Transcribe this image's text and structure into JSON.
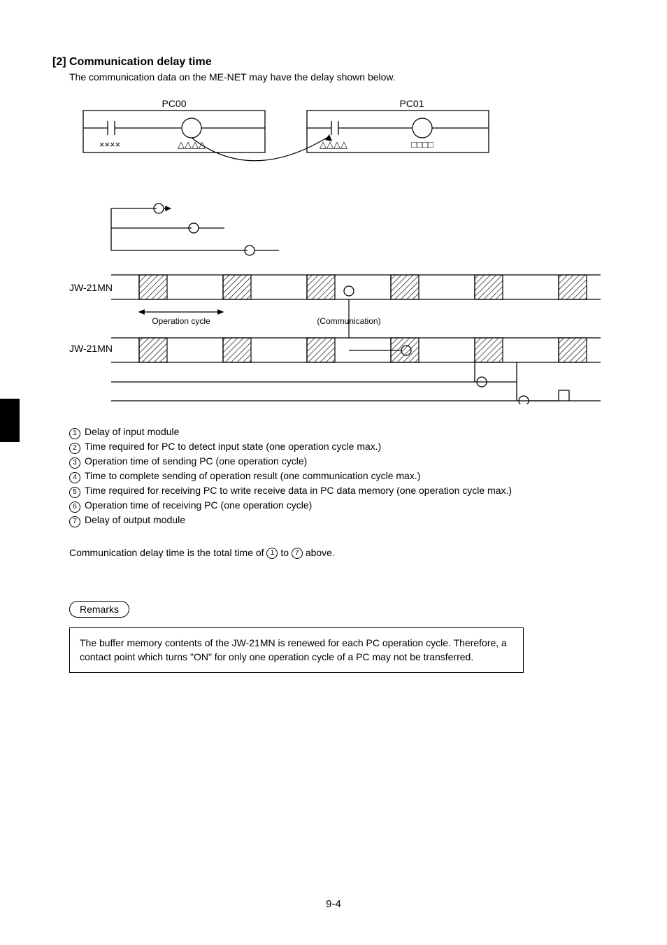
{
  "heading": "[2] Communication delay time",
  "intro": "The communication data on the ME-NET may have the delay shown below.",
  "diagram": {
    "pc_left_label": "PC00",
    "pc_right_label": "PC01",
    "sym_x": "××××",
    "sym_tri_1": "△△△△",
    "sym_tri_2": "△△△△",
    "sym_sq": "□□□□",
    "device_label_1": "JW-21MN",
    "device_label_2": "JW-21MN",
    "op_cycle_label": "Operation cycle",
    "comm_label": "(Communication)",
    "label_font_size": 14,
    "small_label_font_size": 12,
    "line_color": "#000000",
    "hatch_color": "#000000",
    "background_color": "#ffffff"
  },
  "legend": [
    {
      "n": "1",
      "text": "Delay of input module"
    },
    {
      "n": "2",
      "text": "Time required for PC to detect input state (one operation cycle max.)"
    },
    {
      "n": "3",
      "text": "Operation time of sending PC (one operation cycle)"
    },
    {
      "n": "4",
      "text": "Time to complete sending of operation result (one communication cycle max.)"
    },
    {
      "n": "5",
      "text": "Time required for receiving PC to write receive data in PC data memory (one operation cycle max.)"
    },
    {
      "n": "6",
      "text": "Operation time of receiving PC (one operation cycle)"
    },
    {
      "n": "7",
      "text": "Delay of output module"
    }
  ],
  "summary_parts": {
    "pre": "Communication delay time is the total time of ",
    "mid": " to ",
    "post": " above.",
    "first": "1",
    "last": "7"
  },
  "remarks_label": "Remarks",
  "remarks_text": "The buffer memory contents of the JW-21MN is renewed for each PC operation cycle. Therefore, a contact point which turns \"ON\" for only one operation cycle of a PC may not be transferred.",
  "page_number": "9-4"
}
